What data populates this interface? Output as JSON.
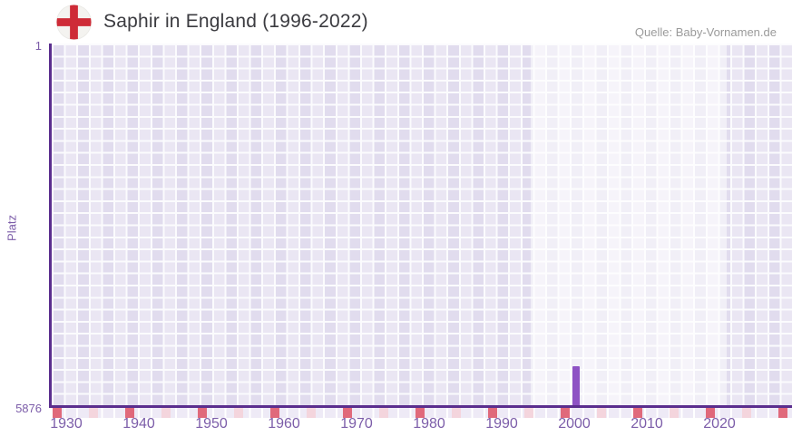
{
  "header": {
    "title": "Saphir in England (1996-2022)",
    "source": "Quelle: Baby-Vornamen.de"
  },
  "colors": {
    "axis_purple": "#5b2e8e",
    "bar_purple": "#8e53c4",
    "label_purple": "#7c5da9",
    "mark_red": "#e0697b",
    "mark_pink": "#f4d5dd",
    "flag_red": "#ce2b37",
    "flag_bg": "#f4f3f0",
    "grid_cell_dark": "#e1dcee",
    "grid_cell_light": "#eae6f3"
  },
  "chart_data": {
    "type": "bar",
    "title": "Saphir in England (1996-2022)",
    "source": "Quelle: Baby-Vornamen.de",
    "xlabel": "",
    "ylabel": "Platz",
    "y_axis": {
      "tick_top": "1",
      "tick_bottom": "5876",
      "min": 1,
      "max": 5876,
      "inverted": true
    },
    "x_axis": {
      "range_years": [
        1928,
        2030
      ],
      "tick_years": [
        1930,
        1940,
        1950,
        1960,
        1970,
        1980,
        1990,
        2000,
        2010,
        2020
      ],
      "minor_marks": {
        "start_year": 1928,
        "end_year": 2028,
        "step_years": 5
      }
    },
    "highlight_period": {
      "from_year": 1994,
      "to_year": 2021
    },
    "points": [
      {
        "year": 2000,
        "platz": 5244
      }
    ],
    "grid": true,
    "legend": false
  }
}
